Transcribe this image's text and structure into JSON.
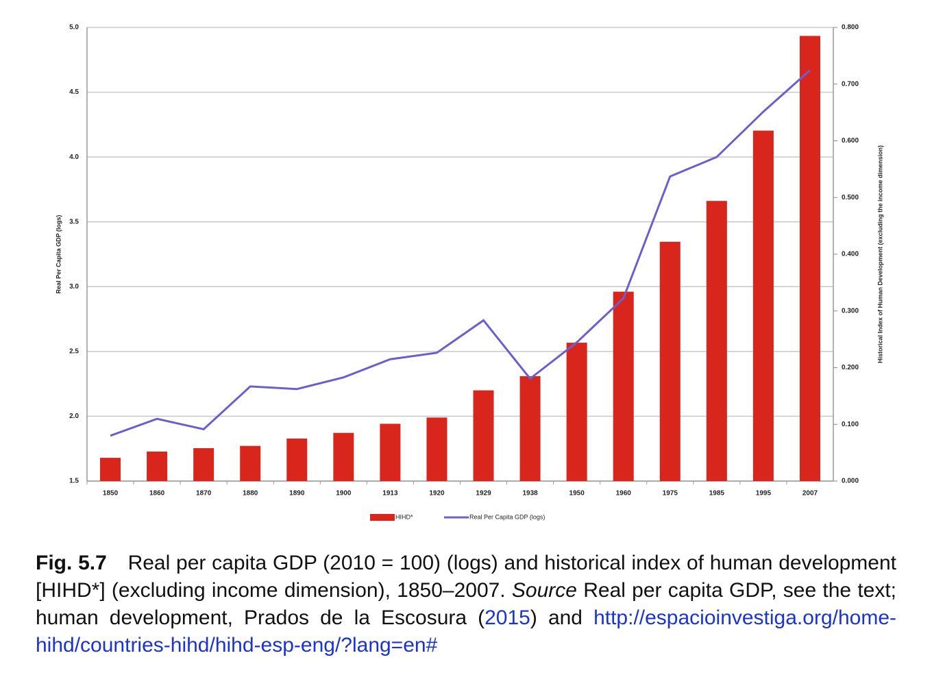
{
  "chart_data": {
    "type": "bar",
    "y_label": "Real Per Capita GDP (logs)",
    "y2_label": "Historical Index of Human Development (excluding the income dimension)",
    "categories": [
      "1850",
      "1860",
      "1870",
      "1880",
      "1890",
      "1900",
      "1913",
      "1920",
      "1929",
      "1938",
      "1950",
      "1960",
      "1975",
      "1985",
      "1995",
      "2007"
    ],
    "series": [
      {
        "name": "HIHD*",
        "type": "bar",
        "axis": "y2",
        "color": "#d9261c",
        "values": [
          0.041,
          0.052,
          0.058,
          0.062,
          0.075,
          0.085,
          0.101,
          0.112,
          0.16,
          0.185,
          0.244,
          0.334,
          0.422,
          0.494,
          0.618,
          0.785
        ]
      },
      {
        "name": "Real Per Capita GDP (logs)",
        "type": "line",
        "color": "#6a5fd0",
        "values": [
          1.85,
          1.98,
          1.9,
          2.23,
          2.21,
          2.3,
          2.44,
          2.49,
          2.74,
          2.29,
          2.57,
          2.91,
          3.85,
          4.0,
          4.35,
          4.67
        ]
      }
    ],
    "ylim": [
      1.5,
      5.0
    ],
    "yticks": [
      1.5,
      {
        "value": 2,
        "label": "2.0"
      },
      2.5,
      {
        "value": 3,
        "label": "3.0"
      },
      3.5,
      {
        "value": 4,
        "label": "4.0"
      },
      4.5,
      {
        "value": 5,
        "label": "5.0"
      }
    ],
    "y2lim": [
      0,
      0.8
    ],
    "y2ticks": [
      {
        "value": 0,
        "label": "0.000"
      },
      {
        "value": 0.1,
        "label": "0.100"
      },
      {
        "value": 0.2,
        "label": "0.200"
      },
      {
        "value": 0.3,
        "label": "0.300"
      },
      {
        "value": 0.4,
        "label": "0.400"
      },
      {
        "value": 0.5,
        "label": "0.500"
      },
      {
        "value": 0.6,
        "label": "0.600"
      },
      {
        "value": 0.7,
        "label": "0.700"
      },
      {
        "value": 0.8,
        "label": "0.800"
      }
    ],
    "grid": true,
    "legend": "bottom"
  },
  "caption": {
    "label": "Fig. 5.7",
    "text": "Real per capita GDP (2010 = 100) (logs) and historical index of human development [HIHD*] (excluding income dimension), 1850–2007.",
    "source_label": "Source",
    "source_text": "Real per capita GDP, see the text; human development, Prados de la Escosura (",
    "source_year": "2015",
    "source_end": ") and",
    "url": "http://espacioinvestiga.org/home-hihd/countries-hihd/hihd-esp-eng/?lang=en#"
  }
}
